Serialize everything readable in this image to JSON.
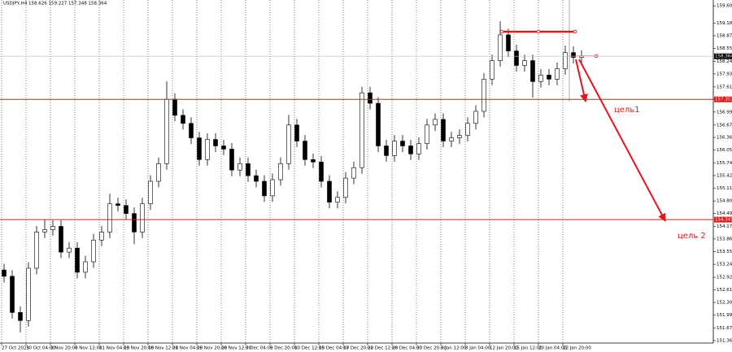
{
  "chart_data": {
    "type": "candlestick",
    "title": "USDJPY,H4 158.626 159.227 157.348 158.364",
    "categories": [
      "27 Oct 2025",
      null,
      null,
      "30 Oct 04:00",
      null,
      null,
      "3 Nov 20:00",
      null,
      null,
      "6 Nov 12:00",
      null,
      null,
      "11 Nov 04:00",
      null,
      null,
      "13 Nov 20:00",
      null,
      null,
      "18 Nov 12:00",
      null,
      null,
      "21 Nov 04:00",
      null,
      null,
      "25 Nov 20:00",
      null,
      null,
      "28 Nov 12:00",
      null,
      null,
      "3 Dec 04:00",
      null,
      null,
      "5 Dec 20:00",
      null,
      null,
      "10 Dec 12:00",
      null,
      null,
      "15 Dec 04:00",
      null,
      null,
      "17 Dec 20:00",
      null,
      null,
      "22 Dec 12:00",
      null,
      null,
      "26 Dec 04:00",
      null,
      null,
      "30 Dec 20:00",
      null,
      null,
      "5 Jan 12:00",
      null,
      null,
      "8 Jan 04:00",
      null,
      null,
      "12 Jan 20:00",
      null,
      null,
      "15 Jan 12:00",
      null,
      null,
      "20 Jan 04:00",
      null,
      null,
      "22 Jan 20:00",
      null,
      null
    ],
    "open": [
      153.1,
      152.945,
      152.053,
      151.855,
      153.143,
      154.035,
      154.095,
      154.174,
      153.54,
      153.639,
      153.044,
      153.302,
      153.837,
      154.035,
      154.729,
      154.689,
      154.491,
      154.035,
      154.729,
      155.284,
      155.72,
      157.306,
      156.909,
      156.711,
      156.354,
      155.819,
      156.315,
      156.156,
      156.077,
      155.561,
      155.72,
      155.423,
      155.284,
      154.927,
      155.324,
      155.72,
      156.671,
      156.275,
      155.819,
      155.76,
      155.284,
      154.769,
      154.888,
      155.363,
      155.621,
      157.464,
      157.206,
      156.156,
      155.918,
      156.275,
      156.156,
      155.958,
      156.215,
      156.671,
      156.81,
      156.275,
      156.354,
      156.414,
      156.711,
      157.008,
      157.801,
      158.257,
      158.891,
      158.495,
      158.138,
      158.257,
      157.742,
      157.9,
      157.801,
      158.059,
      158.455,
      158.336
    ],
    "high": [
      153.25,
      153.095,
      152.203,
      153.293,
      154.185,
      154.345,
      154.324,
      154.324,
      153.789,
      153.789,
      153.452,
      153.987,
      154.185,
      154.979,
      154.879,
      154.839,
      154.641,
      154.879,
      155.434,
      155.87,
      157.75,
      157.456,
      157.059,
      156.861,
      156.504,
      156.465,
      156.465,
      156.306,
      156.227,
      155.87,
      155.87,
      155.573,
      155.434,
      155.474,
      155.87,
      156.921,
      156.821,
      156.425,
      155.969,
      155.91,
      155.434,
      155.038,
      155.513,
      155.771,
      157.61,
      157.614,
      157.356,
      156.306,
      156.425,
      156.425,
      156.306,
      156.365,
      156.821,
      156.96,
      156.96,
      156.504,
      156.564,
      156.861,
      157.158,
      157.951,
      158.407,
      159.227,
      159.041,
      158.645,
      158.407,
      158.407,
      158.05,
      158.05,
      158.209,
      158.626,
      158.605,
      158.514
    ],
    "low": [
      152.795,
      151.903,
      151.56,
      151.705,
      152.993,
      153.885,
      153.945,
      153.39,
      153.39,
      152.894,
      152.894,
      153.152,
      153.687,
      153.885,
      154.539,
      154.341,
      153.735,
      153.885,
      154.579,
      155.134,
      155.57,
      156.759,
      156.561,
      156.204,
      155.669,
      155.669,
      156.006,
      155.927,
      155.411,
      155.411,
      155.273,
      155.134,
      154.777,
      154.777,
      155.174,
      155.57,
      156.125,
      155.669,
      155.61,
      155.134,
      154.619,
      154.619,
      154.738,
      155.213,
      155.471,
      157.056,
      156.006,
      155.768,
      155.768,
      156.006,
      155.808,
      155.808,
      156.065,
      156.521,
      156.125,
      156.125,
      156.204,
      156.264,
      156.561,
      156.858,
      157.651,
      158.107,
      158.345,
      157.988,
      157.988,
      157.348,
      157.592,
      157.651,
      157.651,
      157.909,
      158.186,
      158.186
    ],
    "close": [
      152.945,
      152.053,
      151.855,
      153.143,
      154.035,
      154.095,
      154.174,
      153.54,
      153.639,
      153.044,
      153.302,
      153.837,
      154.035,
      154.729,
      154.689,
      154.491,
      154.035,
      154.729,
      155.284,
      155.72,
      157.306,
      156.909,
      156.711,
      156.354,
      155.819,
      156.315,
      156.156,
      156.077,
      155.561,
      155.72,
      155.423,
      155.284,
      154.927,
      155.324,
      155.72,
      156.671,
      156.275,
      155.819,
      155.76,
      155.284,
      154.769,
      154.888,
      155.363,
      155.621,
      157.464,
      157.206,
      156.156,
      155.918,
      156.275,
      156.156,
      155.958,
      156.215,
      156.671,
      156.81,
      156.275,
      156.354,
      156.414,
      156.711,
      157.008,
      157.801,
      158.257,
      158.891,
      158.495,
      158.138,
      158.257,
      157.742,
      157.9,
      157.801,
      158.059,
      158.455,
      158.336,
      158.364
    ],
    "ylim": [
      151.3,
      159.75
    ],
    "yticks": [
      {
        "value": 151.36,
        "label": "151.360"
      },
      151.675,
      {
        "value": 151.99,
        "label": "151.990"
      },
      {
        "value": 152.3,
        "label": "152.300"
      },
      {
        "value": 152.61,
        "label": "152.610"
      },
      {
        "value": 152.92,
        "label": "152.920"
      },
      {
        "value": 153.24,
        "label": "153.240"
      },
      {
        "value": 153.55,
        "label": "153.550"
      },
      153.865,
      154.175,
      {
        "value": 154.49,
        "label": "154.490"
      },
      {
        "value": 154.8,
        "label": "154.800"
      },
      {
        "value": 155.11,
        "label": "155.110"
      },
      155.425,
      {
        "value": 155.74,
        "label": "155.740"
      },
      156.055,
      156.365,
      {
        "value": 156.67,
        "label": "156.670"
      },
      {
        "value": 156.99,
        "label": "156.990"
      },
      157.305,
      {
        "value": 157.61,
        "label": "157.610"
      },
      {
        "value": 157.93,
        "label": "157.930"
      },
      {
        "value": 158.24,
        "label": "158.240"
      },
      158.555,
      {
        "value": 158.87,
        "label": "158.870"
      },
      {
        "value": 159.18,
        "label": "159.180"
      },
      159.605
    ],
    "levels": [
      157.303,
      154.341
    ],
    "current_price": 158.364,
    "annotations": [
      "цель1",
      "цель 2"
    ],
    "grid": true
  }
}
